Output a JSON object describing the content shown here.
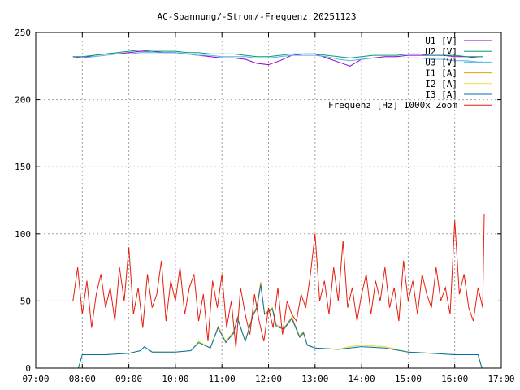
{
  "chart_data": {
    "type": "line",
    "title": "AC-Spannung/-Strom/-Frequenz 20251123",
    "xlabel": "",
    "ylabel": "",
    "xlim": [
      "07:00",
      "17:00"
    ],
    "ylim": [
      0,
      250
    ],
    "grid": true,
    "legend_position": "top-right",
    "x_ticks": [
      "07:00",
      "08:00",
      "09:00",
      "10:00",
      "11:00",
      "12:00",
      "13:00",
      "14:00",
      "15:00",
      "16:00",
      "17:00"
    ],
    "y_ticks": [
      0,
      50,
      100,
      150,
      200,
      250
    ],
    "series": [
      {
        "name": "U1 [V]",
        "color": "#9400d3",
        "x": [
          "07:48",
          "08:00",
          "08:15",
          "08:30",
          "08:45",
          "09:00",
          "09:15",
          "09:30",
          "09:45",
          "10:00",
          "10:15",
          "10:30",
          "10:45",
          "11:00",
          "11:15",
          "11:30",
          "11:45",
          "12:00",
          "12:15",
          "12:30",
          "12:45",
          "13:00",
          "13:15",
          "13:30",
          "13:45",
          "14:00",
          "14:15",
          "14:30",
          "14:45",
          "15:00",
          "15:15",
          "15:30",
          "15:45",
          "16:00",
          "16:15",
          "16:30",
          "16:36"
        ],
        "values": [
          232,
          231,
          233,
          234,
          234,
          235,
          236,
          236,
          235,
          235,
          234,
          233,
          232,
          231,
          231,
          230,
          227,
          226,
          229,
          233,
          234,
          234,
          231,
          228,
          225,
          230,
          231,
          232,
          232,
          233,
          233,
          233,
          233,
          232,
          232,
          231,
          231
        ]
      },
      {
        "name": "U2 [V]",
        "color": "#009e73",
        "x": [
          "07:48",
          "08:00",
          "08:15",
          "08:30",
          "08:45",
          "09:00",
          "09:15",
          "09:30",
          "09:45",
          "10:00",
          "10:15",
          "10:30",
          "10:45",
          "11:00",
          "11:15",
          "11:30",
          "11:45",
          "12:00",
          "12:15",
          "12:30",
          "12:45",
          "13:00",
          "13:15",
          "13:30",
          "13:45",
          "14:00",
          "14:15",
          "14:30",
          "14:45",
          "15:00",
          "15:15",
          "15:30",
          "15:45",
          "16:00",
          "16:15",
          "16:30",
          "16:36"
        ],
        "values": [
          232,
          232,
          233,
          234,
          235,
          236,
          237,
          236,
          236,
          236,
          235,
          235,
          234,
          234,
          234,
          233,
          232,
          232,
          233,
          234,
          234,
          234,
          233,
          232,
          231,
          232,
          233,
          233,
          233,
          234,
          234,
          233,
          233,
          233,
          232,
          232,
          232
        ]
      },
      {
        "name": "U3 [V]",
        "color": "#56b4e9",
        "x": [
          "07:48",
          "08:00",
          "08:15",
          "08:30",
          "08:45",
          "09:00",
          "09:15",
          "09:30",
          "09:45",
          "10:00",
          "10:15",
          "10:30",
          "10:45",
          "11:00",
          "11:15",
          "11:30",
          "11:45",
          "12:00",
          "12:15",
          "12:30",
          "12:45",
          "13:00",
          "13:15",
          "13:30",
          "13:45",
          "14:00",
          "14:15",
          "14:30",
          "14:45",
          "15:00",
          "15:15",
          "15:30",
          "15:45",
          "16:00",
          "16:15",
          "16:30",
          "16:36"
        ],
        "values": [
          231,
          231,
          232,
          233,
          234,
          234,
          235,
          235,
          235,
          235,
          234,
          233,
          233,
          232,
          232,
          232,
          231,
          231,
          232,
          233,
          233,
          233,
          232,
          230,
          229,
          230,
          231,
          231,
          231,
          231,
          231,
          230,
          230,
          229,
          229,
          228,
          228
        ]
      },
      {
        "name": "I1 [A]",
        "color": "#e69f00",
        "x": [
          "07:55",
          "08:00",
          "08:30",
          "09:00",
          "09:15",
          "09:20",
          "09:30",
          "10:00",
          "10:20",
          "10:30",
          "10:45",
          "10:55",
          "11:05",
          "11:15",
          "11:20",
          "11:30",
          "11:40",
          "11:45",
          "11:50",
          "11:55",
          "12:00",
          "12:05",
          "12:10",
          "12:20",
          "12:30",
          "12:40",
          "12:45",
          "12:50",
          "13:00",
          "13:30",
          "13:45",
          "14:00",
          "14:30",
          "15:00",
          "15:30",
          "16:00",
          "16:30",
          "16:35"
        ],
        "values": [
          0,
          10,
          10,
          11,
          13,
          16,
          12,
          12,
          13,
          20,
          15,
          31,
          20,
          27,
          38,
          20,
          40,
          46,
          64,
          40,
          43,
          45,
          32,
          30,
          38,
          24,
          27,
          17,
          15,
          14,
          16,
          17,
          16,
          12,
          11,
          10,
          10,
          0
        ]
      },
      {
        "name": "I2 [A]",
        "color": "#f0e442",
        "x": [
          "07:55",
          "08:00",
          "08:30",
          "09:00",
          "09:15",
          "09:20",
          "09:30",
          "10:00",
          "10:20",
          "10:30",
          "10:45",
          "10:55",
          "11:05",
          "11:15",
          "11:20",
          "11:30",
          "11:40",
          "11:45",
          "11:50",
          "11:55",
          "12:00",
          "12:05",
          "12:10",
          "12:20",
          "12:30",
          "12:40",
          "12:45",
          "12:50",
          "13:00",
          "13:30",
          "13:45",
          "14:00",
          "14:30",
          "15:00",
          "15:30",
          "16:00",
          "16:30",
          "16:35"
        ],
        "values": [
          0,
          10,
          10,
          11,
          13,
          16,
          12,
          12,
          13,
          20,
          15,
          30,
          20,
          26,
          37,
          20,
          39,
          45,
          62,
          40,
          42,
          44,
          31,
          29,
          37,
          23,
          26,
          17,
          15,
          14,
          16,
          17,
          16,
          12,
          11,
          10,
          10,
          0
        ]
      },
      {
        "name": "I3 [A]",
        "color": "#0072b2",
        "x": [
          "07:55",
          "08:00",
          "08:30",
          "09:00",
          "09:15",
          "09:20",
          "09:30",
          "10:00",
          "10:20",
          "10:30",
          "10:45",
          "10:55",
          "11:05",
          "11:15",
          "11:20",
          "11:30",
          "11:40",
          "11:45",
          "11:50",
          "11:55",
          "12:00",
          "12:05",
          "12:10",
          "12:20",
          "12:30",
          "12:40",
          "12:45",
          "12:50",
          "13:00",
          "13:30",
          "13:45",
          "14:00",
          "14:30",
          "15:00",
          "15:30",
          "16:00",
          "16:30",
          "16:35"
        ],
        "values": [
          0,
          10,
          10,
          11,
          13,
          16,
          12,
          12,
          13,
          19,
          15,
          30,
          19,
          26,
          37,
          20,
          39,
          45,
          62,
          40,
          42,
          44,
          31,
          29,
          37,
          23,
          26,
          17,
          15,
          14,
          15,
          16,
          15,
          12,
          11,
          10,
          10,
          0
        ]
      },
      {
        "name": "Frequenz [Hz] 1000x Zoom",
        "color": "#e51e10",
        "x": [
          "07:48",
          "07:54",
          "08:00",
          "08:06",
          "08:12",
          "08:18",
          "08:24",
          "08:30",
          "08:36",
          "08:42",
          "08:48",
          "08:54",
          "09:00",
          "09:06",
          "09:12",
          "09:18",
          "09:24",
          "09:30",
          "09:36",
          "09:42",
          "09:48",
          "09:54",
          "10:00",
          "10:06",
          "10:12",
          "10:18",
          "10:24",
          "10:30",
          "10:36",
          "10:42",
          "10:48",
          "10:54",
          "11:00",
          "11:06",
          "11:12",
          "11:18",
          "11:24",
          "11:30",
          "11:36",
          "11:42",
          "11:48",
          "11:54",
          "12:00",
          "12:06",
          "12:12",
          "12:18",
          "12:24",
          "12:30",
          "12:36",
          "12:42",
          "12:48",
          "12:54",
          "13:00",
          "13:06",
          "13:12",
          "13:18",
          "13:24",
          "13:30",
          "13:36",
          "13:42",
          "13:48",
          "13:54",
          "14:00",
          "14:06",
          "14:12",
          "14:18",
          "14:24",
          "14:30",
          "14:36",
          "14:42",
          "14:48",
          "14:54",
          "15:00",
          "15:06",
          "15:12",
          "15:18",
          "15:24",
          "15:30",
          "15:36",
          "15:42",
          "15:48",
          "15:54",
          "16:00",
          "16:06",
          "16:12",
          "16:18",
          "16:24",
          "16:30",
          "16:36",
          "16:38"
        ],
        "values": [
          50,
          75,
          40,
          65,
          30,
          55,
          70,
          45,
          60,
          35,
          75,
          50,
          90,
          40,
          60,
          30,
          70,
          45,
          55,
          80,
          35,
          65,
          50,
          75,
          40,
          60,
          70,
          35,
          55,
          20,
          65,
          45,
          70,
          30,
          50,
          15,
          60,
          40,
          25,
          55,
          35,
          20,
          45,
          30,
          60,
          25,
          50,
          40,
          35,
          55,
          45,
          70,
          100,
          50,
          65,
          40,
          75,
          50,
          95,
          45,
          60,
          35,
          55,
          70,
          40,
          65,
          50,
          75,
          45,
          60,
          35,
          80,
          50,
          65,
          40,
          70,
          55,
          45,
          75,
          50,
          60,
          40,
          110,
          55,
          70,
          45,
          35,
          60,
          45,
          115
        ]
      }
    ]
  }
}
